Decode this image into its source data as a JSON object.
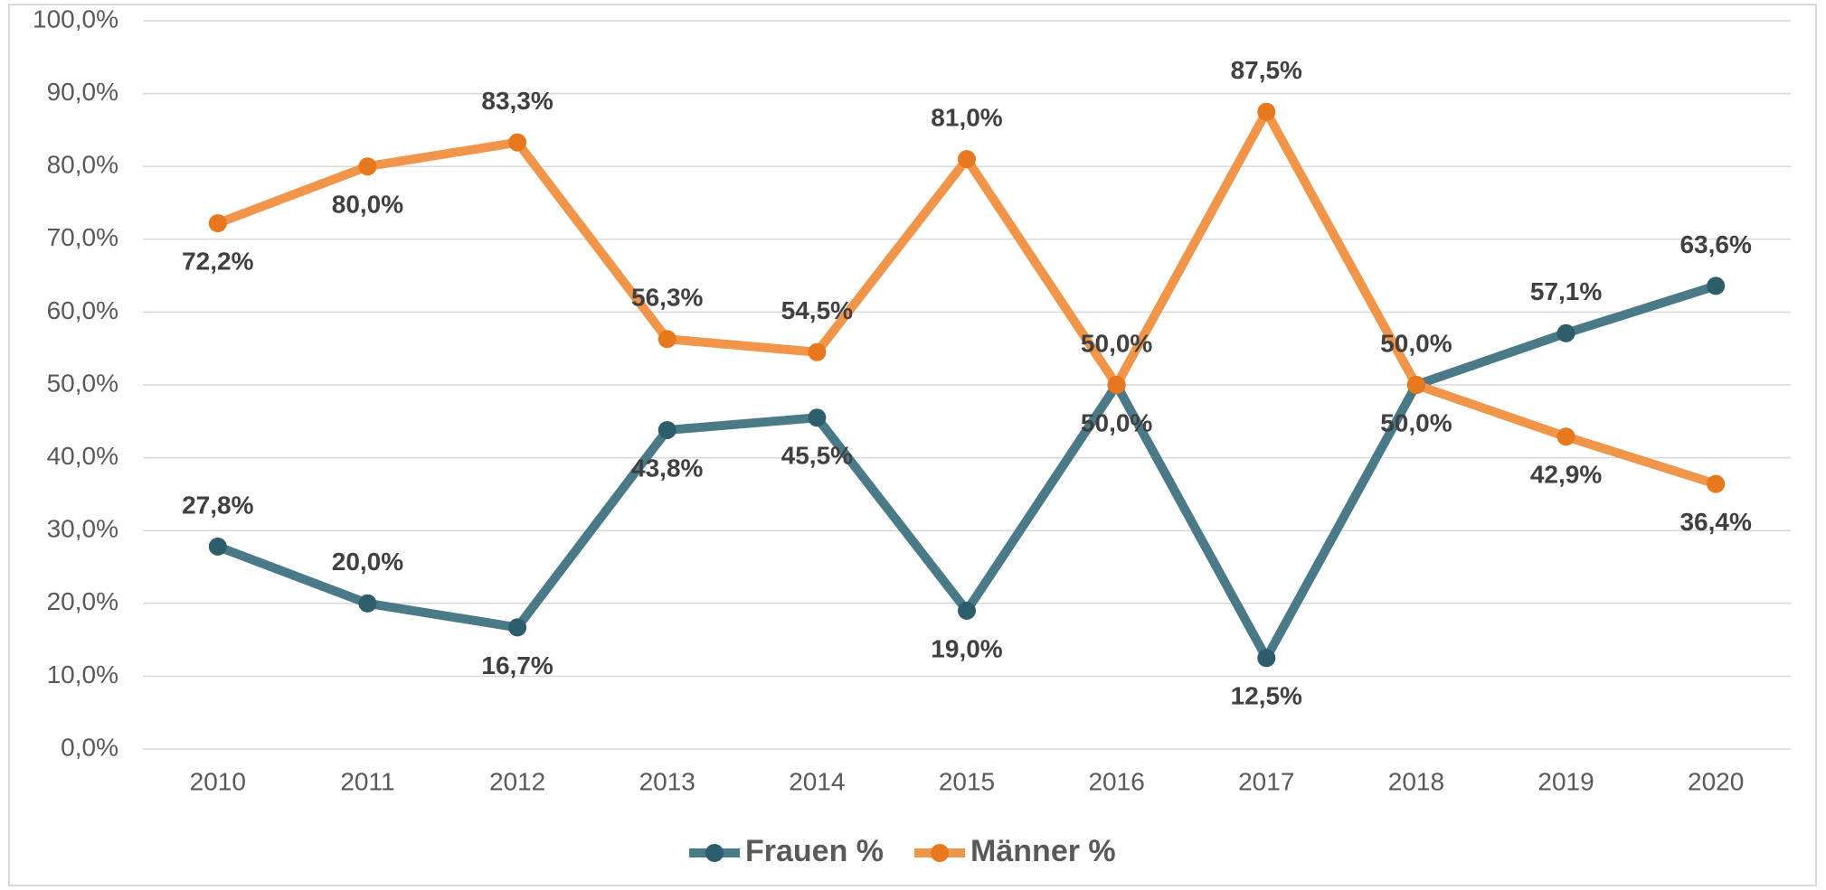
{
  "chart_data": {
    "type": "line",
    "categories": [
      "2010",
      "2011",
      "2012",
      "2013",
      "2014",
      "2015",
      "2016",
      "2017",
      "2018",
      "2019",
      "2020"
    ],
    "series": [
      {
        "name": "Frauen %",
        "color": "#4a7a87",
        "marker_color": "#2e5e6b",
        "values": [
          27.8,
          20.0,
          16.7,
          43.8,
          45.5,
          19.0,
          50.0,
          12.5,
          50.0,
          57.1,
          63.6
        ],
        "value_labels": [
          "27,8%",
          "20,0%",
          "16,7%",
          "43,8%",
          "45,5%",
          "19,0%",
          "50,0%",
          "12,5%",
          "50,0%",
          "57,1%",
          "63,6%"
        ]
      },
      {
        "name": "Männer %",
        "color": "#f0954a",
        "marker_color": "#e8781e",
        "values": [
          72.2,
          80.0,
          83.3,
          56.3,
          54.5,
          81.0,
          50.0,
          87.5,
          50.0,
          42.9,
          36.4
        ],
        "value_labels": [
          "72,2%",
          "80,0%",
          "83,3%",
          "56,3%",
          "54,5%",
          "81,0%",
          "50,0%",
          "87,5%",
          "50,0%",
          "42,9%",
          "36,4%"
        ]
      }
    ],
    "ylim": [
      0,
      100
    ],
    "yticks": [
      {
        "value": 0,
        "label": "0,0%"
      },
      {
        "value": 10,
        "label": "10,0%"
      },
      {
        "value": 20,
        "label": "20,0%"
      },
      {
        "value": 30,
        "label": "30,0%"
      },
      {
        "value": 40,
        "label": "40,0%"
      },
      {
        "value": 50,
        "label": "50,0%"
      },
      {
        "value": 60,
        "label": "60,0%"
      },
      {
        "value": 70,
        "label": "70,0%"
      },
      {
        "value": 80,
        "label": "80,0%"
      },
      {
        "value": 90,
        "label": "90,0%"
      },
      {
        "value": 100,
        "label": "100,0%"
      }
    ],
    "grid": true,
    "legend": "bottom"
  }
}
